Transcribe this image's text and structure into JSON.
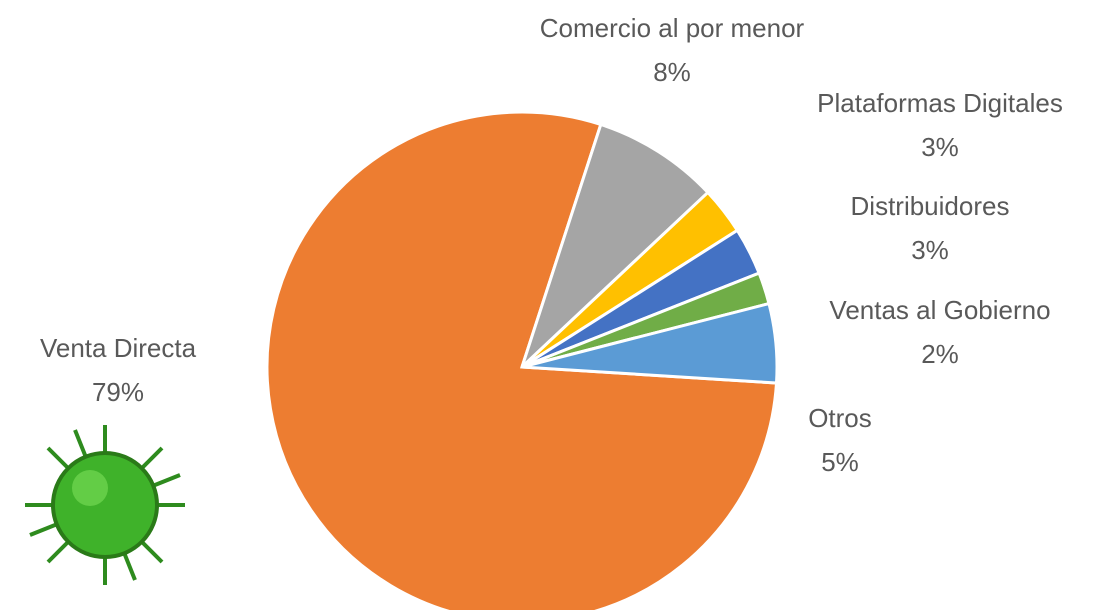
{
  "chart_data": {
    "type": "pie",
    "categories": [
      "Venta Directa",
      "Comercio al por menor",
      "Plataformas Digitales",
      "Distribuidores",
      "Ventas al Gobierno",
      "Otros"
    ],
    "values": [
      79,
      8,
      3,
      3,
      2,
      5
    ],
    "value_labels": [
      "79%",
      "8%",
      "3%",
      "3%",
      "2%",
      "5%"
    ],
    "colors": [
      "#ed7d31",
      "#a5a5a5",
      "#ffc000",
      "#4472c4",
      "#70ad47",
      "#5b9bd5"
    ]
  }
}
